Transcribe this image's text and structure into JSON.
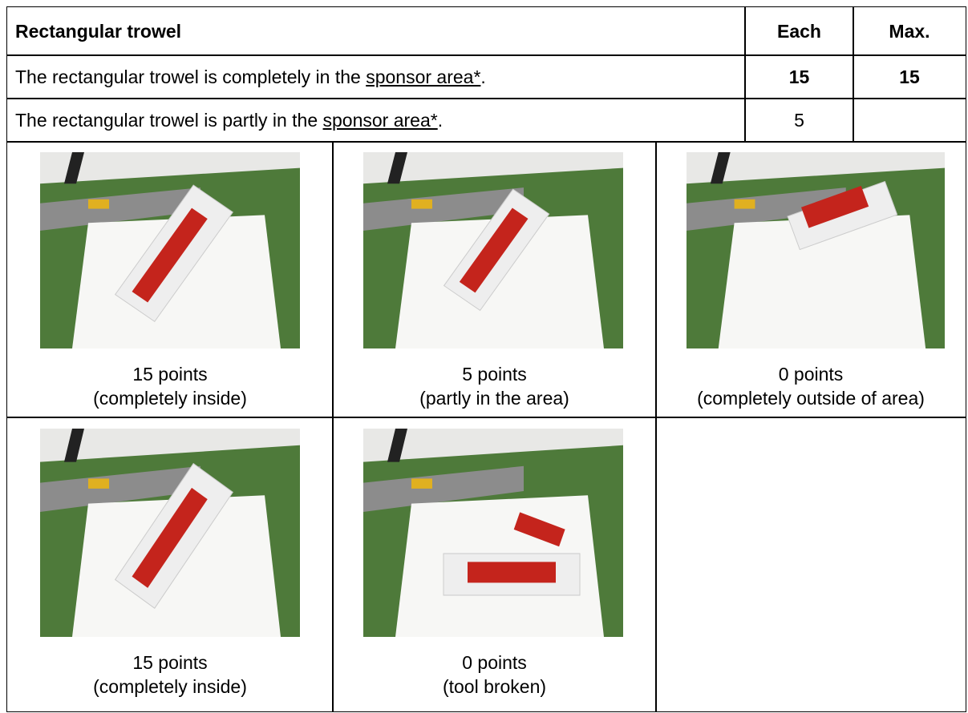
{
  "table": {
    "header": {
      "title": "Rectangular trowel",
      "each": "Each",
      "max": "Max."
    },
    "rows": [
      {
        "text": "The rectangular trowel is completely in the ",
        "link": "sponsor area*",
        "end": ".",
        "each": "15",
        "max": "15"
      },
      {
        "text": "The rectangular trowel is partly in the ",
        "link": "sponsor area*",
        "end": ".",
        "each": "5"
      }
    ],
    "photos": [
      {
        "points": "15 points",
        "note": "(completely inside)"
      },
      {
        "points": "5 points",
        "note": "(partly in the area)"
      },
      {
        "points": "0 points",
        "note": "(completely outside of area)"
      },
      {
        "points": "15 points",
        "note": "(completely inside)"
      },
      {
        "points": "0 points",
        "note": "(tool broken)"
      }
    ]
  }
}
